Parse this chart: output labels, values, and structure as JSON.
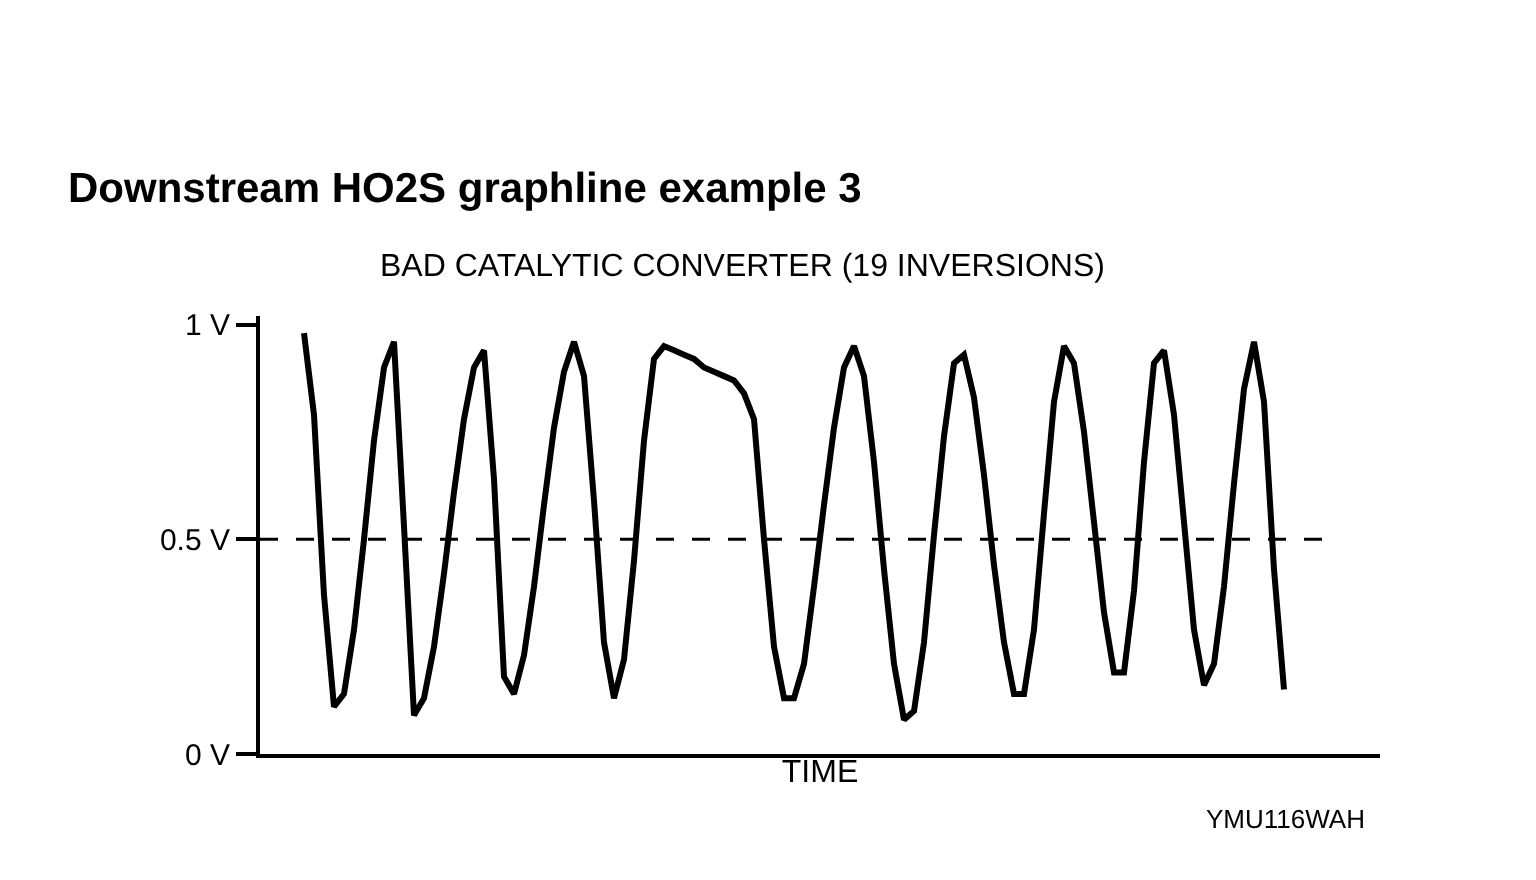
{
  "chart_data": {
    "type": "line",
    "title": "Downstream HO2S graphline example 3",
    "subtitle": "BAD CATALYTIC CONVERTER (19 INVERSIONS)",
    "xlabel": "TIME",
    "categories": [
      null,
      null,
      null,
      null,
      null,
      null,
      null,
      null,
      null,
      null,
      null,
      null,
      null,
      null,
      null,
      null,
      null,
      null,
      null,
      null,
      null,
      null,
      null,
      null,
      null,
      null,
      null,
      null,
      null,
      null,
      null,
      null,
      null,
      null,
      null,
      null,
      null,
      null,
      null,
      null,
      null,
      null,
      null,
      null,
      null,
      null,
      null,
      null,
      null,
      null,
      null,
      null,
      null,
      null,
      null,
      null,
      null,
      null,
      null,
      null,
      null,
      null,
      null,
      null,
      null,
      null,
      null,
      null,
      null,
      null,
      null,
      null,
      null,
      null,
      null,
      null,
      null,
      null,
      null,
      null,
      null,
      null,
      null,
      null,
      null,
      null,
      null,
      null,
      null,
      null,
      null,
      null,
      null,
      null,
      null,
      null,
      null,
      null,
      null
    ],
    "series": [
      {
        "color": "#000000",
        "values": [
          0.98,
          0.79,
          0.37,
          0.11,
          0.14,
          0.29,
          0.5,
          0.73,
          0.9,
          0.96,
          0.53,
          0.09,
          0.13,
          0.25,
          0.42,
          0.61,
          0.78,
          0.9,
          0.94,
          0.64,
          0.18,
          0.14,
          0.23,
          0.39,
          0.58,
          0.76,
          0.89,
          0.96,
          0.88,
          0.59,
          0.26,
          0.13,
          0.22,
          0.45,
          0.73,
          0.92,
          0.95,
          0.94,
          0.93,
          0.92,
          0.9,
          0.89,
          0.88,
          0.87,
          0.84,
          0.78,
          0.5,
          0.25,
          0.13,
          0.13,
          0.21,
          0.39,
          0.58,
          0.76,
          0.9,
          0.95,
          0.88,
          0.68,
          0.43,
          0.21,
          0.08,
          0.1,
          0.26,
          0.51,
          0.74,
          0.91,
          0.93,
          0.83,
          0.65,
          0.44,
          0.26,
          0.14,
          0.14,
          0.29,
          0.56,
          0.82,
          0.95,
          0.91,
          0.75,
          0.54,
          0.33,
          0.19,
          0.19,
          0.38,
          0.68,
          0.91,
          0.94,
          0.79,
          0.54,
          0.29,
          0.16,
          0.21,
          0.39,
          0.63,
          0.85,
          0.96,
          0.82,
          0.43,
          0.15
        ]
      }
    ],
    "ylim": [
      0,
      1.02
    ],
    "yticks": [
      {
        "value": 0,
        "label": "0 V"
      },
      {
        "value": 0.5,
        "label": "0.5 V"
      },
      {
        "value": 1,
        "label": "1 V"
      }
    ],
    "ref_lines": [
      {
        "axis": "y",
        "value": 0.5,
        "line_style": "dashed",
        "color": "#000000"
      }
    ],
    "annotations": [
      "YMU116WAH"
    ],
    "marker": "none",
    "line_style": "solid",
    "tick_labels": "y"
  }
}
